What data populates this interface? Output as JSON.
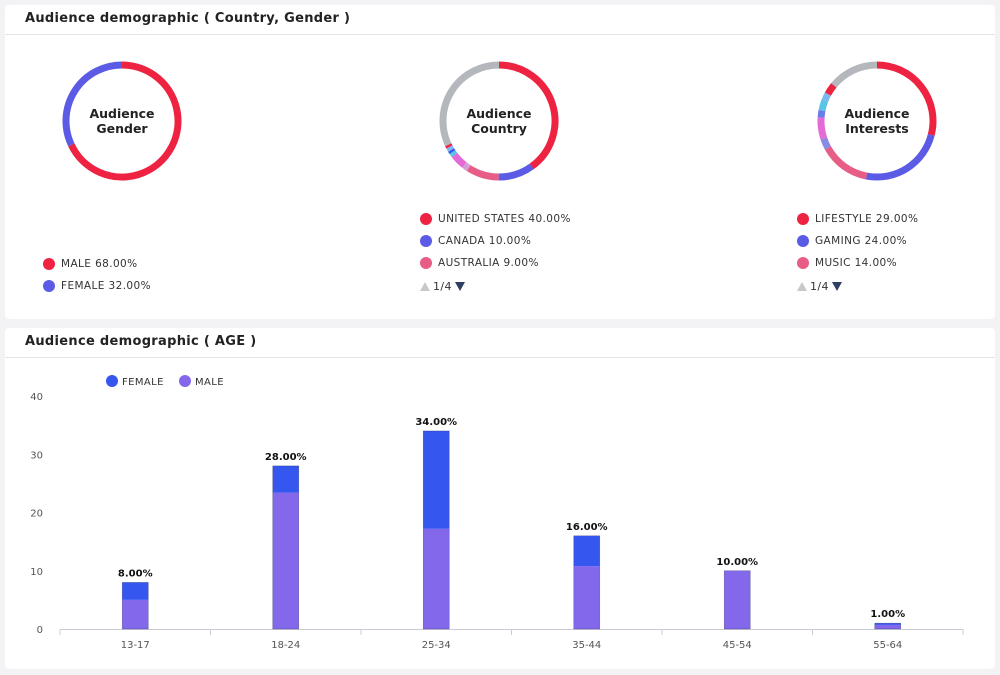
{
  "top_card": {
    "title": "Audience demographic ( Country, Gender )"
  },
  "bottom_card": {
    "title": "Audience demographic ( AGE )"
  },
  "colors": {
    "red": "#ee2342",
    "blue_purple": "#5b5be6",
    "pink": "#e85d86",
    "gray": "#b4b8bd",
    "magenta": "#e46ad6",
    "female_bar": "#3656f0",
    "male_bar": "#8468ec"
  },
  "gender": {
    "center_label_line1": "Audience",
    "center_label_line2": "Gender",
    "legend": [
      {
        "label": "MALE 68.00%",
        "color": "#ee2342"
      },
      {
        "label": "FEMALE 32.00%",
        "color": "#5b5be6"
      }
    ]
  },
  "country": {
    "center_label_line1": "Audience",
    "center_label_line2": "Country",
    "legend": [
      {
        "label": "UNITED STATES 40.00%",
        "color": "#ee2342"
      },
      {
        "label": "CANADA 10.00%",
        "color": "#5b5be6"
      },
      {
        "label": "AUSTRALIA 9.00%",
        "color": "#e85d86"
      }
    ],
    "pager": "1/4"
  },
  "interests": {
    "center_label_line1": "Audience",
    "center_label_line2": "Interests",
    "legend": [
      {
        "label": "LIFESTYLE 29.00%",
        "color": "#ee2342"
      },
      {
        "label": "GAMING 24.00%",
        "color": "#5b5be6"
      },
      {
        "label": "MUSIC 14.00%",
        "color": "#e85d86"
      }
    ],
    "pager": "1/4"
  },
  "chart_data": [
    {
      "type": "pie",
      "title": "",
      "labels": [
        "MALE",
        "FEMALE"
      ],
      "values": [
        68,
        32
      ],
      "colors": [
        "#ee2342",
        "#5b5be6"
      ]
    },
    {
      "type": "pie",
      "title": "",
      "labels": [
        "UNITED STATES",
        "CANADA",
        "AUSTRALIA",
        "",
        "",
        "",
        "",
        "",
        "",
        ""
      ],
      "values": [
        40,
        10,
        9,
        1.5,
        4,
        1,
        0.7,
        1,
        0.7,
        31.9
      ],
      "colors": [
        "#ee2342",
        "#5b5be6",
        "#e85d86",
        "#d79bd6",
        "#e46ad6",
        "#59c4e6",
        "#3656f0",
        "#7ab8f0",
        "#ee2342",
        "#b4b8bd"
      ]
    },
    {
      "type": "pie",
      "title": "",
      "labels": [
        "LIFESTYLE",
        "GAMING",
        "MUSIC",
        "",
        "",
        "",
        "",
        "",
        "",
        ""
      ],
      "values": [
        29,
        24,
        14,
        3,
        6,
        2,
        3,
        2,
        3,
        14
      ],
      "colors": [
        "#ee2342",
        "#5b5be6",
        "#e85d86",
        "#8a8ae0",
        "#e46ad6",
        "#6b7ee8",
        "#59c4e6",
        "#7ab8f0",
        "#ee2342",
        "#b4b8bd"
      ]
    },
    {
      "type": "bar",
      "stacked": true,
      "categories": [
        "13-17",
        "18-24",
        "25-34",
        "35-44",
        "45-54",
        "55-64"
      ],
      "series": [
        {
          "name": "MALE",
          "color": "#8468ec",
          "values": [
            5,
            23.4,
            17.2,
            10.8,
            10,
            0.7
          ]
        },
        {
          "name": "FEMALE",
          "color": "#3656f0",
          "values": [
            3,
            4.6,
            16.8,
            5.2,
            0,
            0.3
          ]
        }
      ],
      "totals_labels": [
        "8.00%",
        "28.00%",
        "34.00%",
        "16.00%",
        "10.00%",
        "1.00%"
      ],
      "totals": [
        8,
        28,
        34,
        16,
        10,
        1
      ],
      "ylim": [
        0,
        40
      ],
      "yticks": [
        0,
        10,
        20,
        30,
        40
      ],
      "legend": [
        {
          "name": "FEMALE",
          "color": "#3656f0"
        },
        {
          "name": "MALE",
          "color": "#8468ec"
        }
      ],
      "legend_position": "top-left",
      "grid": false
    }
  ]
}
